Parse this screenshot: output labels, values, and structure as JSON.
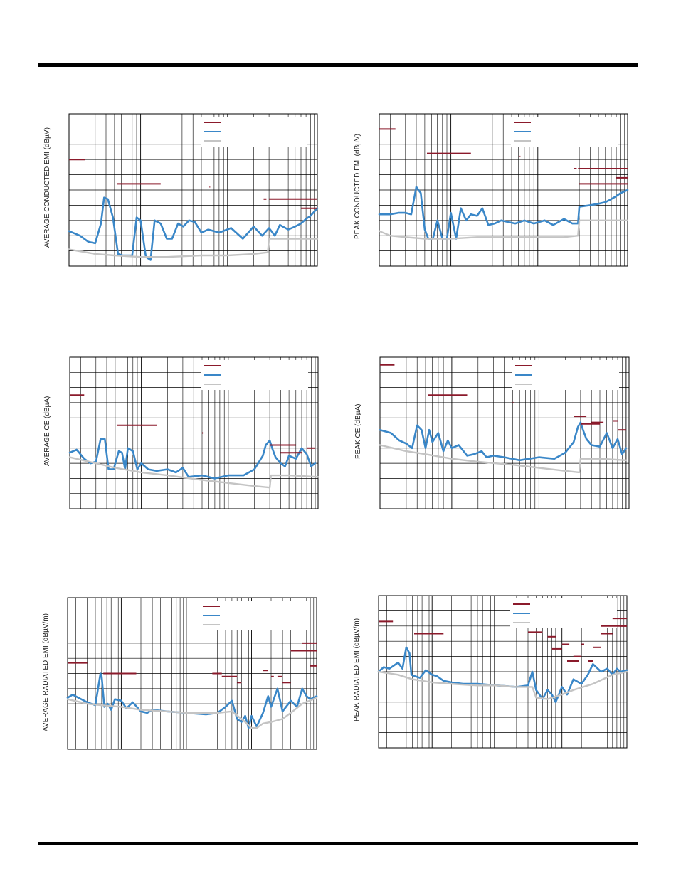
{
  "colors": {
    "limit": "#8b1a2b",
    "measured": "#3a87c8",
    "noise_floor": "#c4c4c4",
    "grid": "#000000"
  },
  "chart_data": [
    {
      "type": "line",
      "ylabel": "AVERAGE CONDUCTED EMI (dBµV)",
      "xscale": "log",
      "xlim": [
        0.15,
        108
      ],
      "ylim": [
        0,
        100
      ],
      "grid": true,
      "legend": "top-right",
      "series": [
        {
          "role": "measured",
          "x": [
            0.15,
            0.2,
            0.25,
            0.3,
            0.35,
            0.38,
            0.42,
            0.48,
            0.55,
            0.62,
            0.7,
            0.8,
            0.9,
            1.0,
            1.15,
            1.3,
            1.45,
            1.7,
            2.0,
            2.3,
            2.7,
            3.1,
            3.6,
            4.2,
            5.0,
            6,
            8,
            11,
            15,
            20,
            25,
            30,
            35,
            40,
            50,
            60,
            70,
            80,
            90,
            108
          ],
          "y": [
            23,
            20,
            16,
            15,
            28,
            45,
            44,
            32,
            8,
            7,
            7,
            7,
            32,
            30,
            6,
            4,
            30,
            28,
            18,
            18,
            28,
            26,
            30,
            29,
            22,
            24,
            22,
            25,
            18,
            26,
            20,
            25,
            20,
            27,
            24,
            26,
            28,
            31,
            33,
            38
          ]
        },
        {
          "role": "noise_floor",
          "x": [
            0.15,
            0.3,
            0.5,
            1,
            2,
            5,
            10,
            20,
            29,
            30,
            50,
            108
          ],
          "y": [
            11,
            8,
            7,
            6,
            6,
            7,
            7,
            8,
            9,
            18,
            18,
            18
          ]
        },
        {
          "role": "limit",
          "segments": [
            [
              0.15,
              0.23,
              70
            ],
            [
              0.53,
              1.7,
              54
            ],
            [
              6.2,
              6.3,
              52
            ],
            [
              26,
              28,
              44
            ],
            [
              30,
              108,
              44
            ],
            [
              70,
              108,
              38
            ]
          ]
        }
      ]
    },
    {
      "type": "line",
      "ylabel": "PEAK CONDUCTED EMI (dBµV)",
      "xscale": "log",
      "xlim": [
        0.15,
        108
      ],
      "ylim": [
        0,
        100
      ],
      "grid": true,
      "legend": "top-right",
      "series": [
        {
          "role": "measured",
          "x": [
            0.15,
            0.2,
            0.25,
            0.3,
            0.35,
            0.4,
            0.45,
            0.5,
            0.55,
            0.62,
            0.7,
            0.8,
            0.9,
            1.0,
            1.15,
            1.3,
            1.5,
            1.7,
            2.0,
            2.3,
            2.7,
            3.2,
            3.8,
            4.5,
            5.5,
            7,
            9,
            12,
            15,
            20,
            25,
            29,
            30,
            40,
            50,
            60,
            70,
            80,
            90,
            108
          ],
          "y": [
            34,
            34,
            35,
            35,
            34,
            52,
            48,
            24,
            18,
            18,
            30,
            18,
            18,
            35,
            18,
            38,
            30,
            34,
            33,
            38,
            27,
            28,
            30,
            29,
            28,
            30,
            28,
            30,
            27,
            31,
            28,
            28,
            39,
            40,
            41,
            42,
            44,
            46,
            48,
            50
          ]
        },
        {
          "role": "noise_floor",
          "x": [
            0.15,
            0.2,
            0.3,
            0.5,
            1,
            2,
            5,
            10,
            20,
            29,
            30,
            50,
            108
          ],
          "y": [
            23,
            20,
            19,
            18,
            18,
            19,
            19,
            19,
            19,
            20,
            30,
            30,
            30
          ]
        },
        {
          "role": "limit",
          "segments": [
            [
              0.15,
              0.23,
              90
            ],
            [
              0.53,
              1.7,
              74
            ],
            [
              6.2,
              6.3,
              72
            ],
            [
              26,
              28,
              64
            ],
            [
              29,
              108,
              64
            ],
            [
              30,
              108,
              54
            ],
            [
              80,
              108,
              58
            ]
          ]
        }
      ]
    },
    {
      "type": "line",
      "ylabel": "AVERAGE CE (dBµA)",
      "xscale": "log",
      "xlim": [
        0.15,
        108
      ],
      "ylim": [
        0,
        100
      ],
      "grid": true,
      "legend": "top-right",
      "series": [
        {
          "role": "measured",
          "x": [
            0.15,
            0.18,
            0.22,
            0.26,
            0.3,
            0.34,
            0.38,
            0.42,
            0.48,
            0.55,
            0.6,
            0.65,
            0.7,
            0.8,
            0.9,
            1.0,
            1.2,
            1.5,
            2,
            2.5,
            3,
            3.5,
            5,
            7,
            10,
            15,
            20,
            25,
            27,
            30,
            32,
            35,
            40,
            45,
            50,
            60,
            70,
            80,
            90,
            100
          ],
          "y": [
            37,
            39,
            33,
            30,
            31,
            46,
            46,
            26,
            26,
            38,
            37,
            26,
            40,
            38,
            26,
            30,
            26,
            25,
            26,
            24,
            27,
            21,
            22,
            20,
            22,
            22,
            26,
            35,
            42,
            45,
            40,
            34,
            30,
            28,
            35,
            33,
            40,
            36,
            28,
            30
          ]
        },
        {
          "role": "noise_floor",
          "x": [
            0.15,
            0.3,
            0.5,
            1,
            2,
            5,
            10,
            20,
            30,
            31,
            50,
            108
          ],
          "y": [
            34,
            30,
            27,
            24,
            22,
            19,
            17,
            15,
            14,
            22,
            22,
            21
          ]
        },
        {
          "role": "limit",
          "segments": [
            [
              0.15,
              0.22,
              75
            ],
            [
              0.53,
              1.5,
              55
            ],
            [
              5,
              5.1,
              50
            ],
            [
              30,
              60,
              42
            ],
            [
              40,
              60,
              37
            ],
            [
              60,
              70,
              37
            ],
            [
              80,
              100,
              40
            ]
          ]
        }
      ]
    },
    {
      "type": "line",
      "ylabel": "PEAK CE (dBµA)",
      "xscale": "log",
      "xlim": [
        0.15,
        108
      ],
      "ylim": [
        0,
        100
      ],
      "grid": true,
      "legend": "top-right",
      "series": [
        {
          "role": "measured",
          "x": [
            0.15,
            0.2,
            0.25,
            0.3,
            0.35,
            0.4,
            0.45,
            0.5,
            0.55,
            0.6,
            0.7,
            0.8,
            0.9,
            1.0,
            1.2,
            1.5,
            1.8,
            2.2,
            2.5,
            3,
            4,
            6,
            10,
            15,
            20,
            25,
            28,
            30,
            32,
            35,
            40,
            50,
            60,
            70,
            80,
            90,
            100
          ],
          "y": [
            52,
            50,
            45,
            43,
            40,
            55,
            52,
            40,
            52,
            44,
            50,
            38,
            45,
            40,
            42,
            35,
            36,
            38,
            34,
            35,
            34,
            32,
            34,
            33,
            37,
            44,
            54,
            57,
            52,
            46,
            42,
            41,
            50,
            40,
            46,
            36,
            40
          ]
        },
        {
          "role": "noise_floor",
          "x": [
            0.15,
            0.3,
            0.5,
            1,
            2,
            5,
            10,
            20,
            29,
            30,
            50,
            100
          ],
          "y": [
            42,
            38,
            36,
            33,
            31,
            29,
            27,
            25,
            24,
            33,
            33,
            32
          ]
        },
        {
          "role": "limit",
          "segments": [
            [
              0.15,
              0.22,
              95
            ],
            [
              0.53,
              1.5,
              75
            ],
            [
              5,
              5.1,
              70
            ],
            [
              25,
              35,
              61
            ],
            [
              30,
              50,
              56
            ],
            [
              40,
              55,
              57
            ],
            [
              70,
              80,
              58
            ],
            [
              80,
              100,
              52
            ]
          ]
        }
      ]
    },
    {
      "type": "line",
      "ylabel": "AVERAGE RADIATED EMI (dBµV/m)",
      "xscale": "log",
      "xlim": [
        0.15,
        1000
      ],
      "ylim": [
        0,
        100
      ],
      "grid": true,
      "legend": "top-right",
      "series": [
        {
          "role": "measured",
          "x": [
            0.15,
            0.18,
            0.22,
            0.3,
            0.4,
            0.48,
            0.5,
            0.55,
            0.62,
            0.7,
            0.8,
            1.0,
            1.2,
            1.5,
            2.0,
            2.5,
            3,
            5,
            10,
            20,
            30,
            40,
            50,
            60,
            70,
            80,
            90,
            100,
            120,
            150,
            180,
            200,
            250,
            300,
            400,
            500,
            600,
            700,
            800,
            1000
          ],
          "y": [
            34,
            36,
            34,
            31,
            29,
            50,
            48,
            28,
            30,
            26,
            33,
            32,
            27,
            31,
            25,
            24,
            26,
            25,
            24,
            23,
            24,
            28,
            32,
            20,
            18,
            22,
            14,
            22,
            15,
            24,
            35,
            28,
            40,
            25,
            32,
            28,
            40,
            35,
            33,
            35
          ]
        },
        {
          "role": "noise_floor",
          "x": [
            0.15,
            0.3,
            0.5,
            1,
            2,
            5,
            10,
            20,
            30,
            50,
            80,
            100,
            120,
            150,
            200,
            300,
            400,
            600,
            1000
          ],
          "y": [
            33,
            30,
            29,
            28,
            26,
            25,
            24,
            24,
            24,
            25,
            18,
            14,
            14,
            17,
            18,
            20,
            24,
            30,
            34
          ]
        },
        {
          "role": "limit",
          "segments": [
            [
              0.15,
              0.3,
              57
            ],
            [
              0.53,
              1.7,
              50
            ],
            [
              25,
              35,
              50
            ],
            [
              35,
              60,
              48
            ],
            [
              60,
              70,
              44
            ],
            [
              150,
              180,
              52
            ],
            [
              200,
              220,
              48
            ],
            [
              250,
              300,
              48
            ],
            [
              300,
              400,
              44
            ],
            [
              400,
              600,
              65
            ],
            [
              400,
              1000,
              65
            ],
            [
              600,
              1000,
              70
            ],
            [
              800,
              1000,
              55
            ]
          ]
        }
      ]
    },
    {
      "type": "line",
      "ylabel": "PEAK RADIATED EMI (dBµV/m)",
      "xscale": "log",
      "xlim": [
        0.15,
        1000
      ],
      "ylim": [
        0,
        100
      ],
      "grid": true,
      "legend": "top-right",
      "series": [
        {
          "role": "measured",
          "x": [
            0.15,
            0.18,
            0.22,
            0.3,
            0.35,
            0.4,
            0.45,
            0.48,
            0.55,
            0.65,
            0.8,
            1.0,
            1.2,
            1.5,
            2,
            3,
            5,
            10,
            20,
            30,
            35,
            40,
            45,
            50,
            60,
            70,
            80,
            100,
            120,
            150,
            200,
            250,
            300,
            400,
            500,
            600,
            700,
            800,
            1000
          ],
          "y": [
            50,
            53,
            52,
            56,
            52,
            66,
            62,
            48,
            47,
            46,
            51,
            48,
            47,
            44,
            43,
            42,
            42,
            41,
            40,
            41,
            50,
            38,
            35,
            32,
            38,
            35,
            30,
            40,
            35,
            45,
            42,
            48,
            55,
            50,
            52,
            48,
            52,
            50,
            51
          ]
        },
        {
          "role": "noise_floor",
          "x": [
            0.15,
            0.3,
            0.5,
            1,
            2,
            5,
            10,
            20,
            30,
            35,
            40,
            60,
            100,
            150,
            300,
            600,
            1000
          ],
          "y": [
            50,
            48,
            45,
            43,
            42,
            41,
            41,
            40,
            40,
            40,
            33,
            32,
            35,
            38,
            42,
            48,
            50
          ]
        },
        {
          "role": "limit",
          "segments": [
            [
              0.15,
              0.25,
              83
            ],
            [
              0.53,
              1.5,
              75
            ],
            [
              30,
              50,
              76
            ],
            [
              60,
              80,
              73
            ],
            [
              70,
              100,
              65
            ],
            [
              100,
              130,
              68
            ],
            [
              120,
              180,
              57
            ],
            [
              150,
              200,
              60
            ],
            [
              200,
              220,
              68
            ],
            [
              250,
              300,
              57
            ],
            [
              300,
              400,
              66
            ],
            [
              400,
              600,
              75
            ],
            [
              400,
              1000,
              80
            ],
            [
              600,
              1000,
              85
            ],
            [
              800,
              1000,
              80
            ]
          ]
        }
      ]
    }
  ]
}
